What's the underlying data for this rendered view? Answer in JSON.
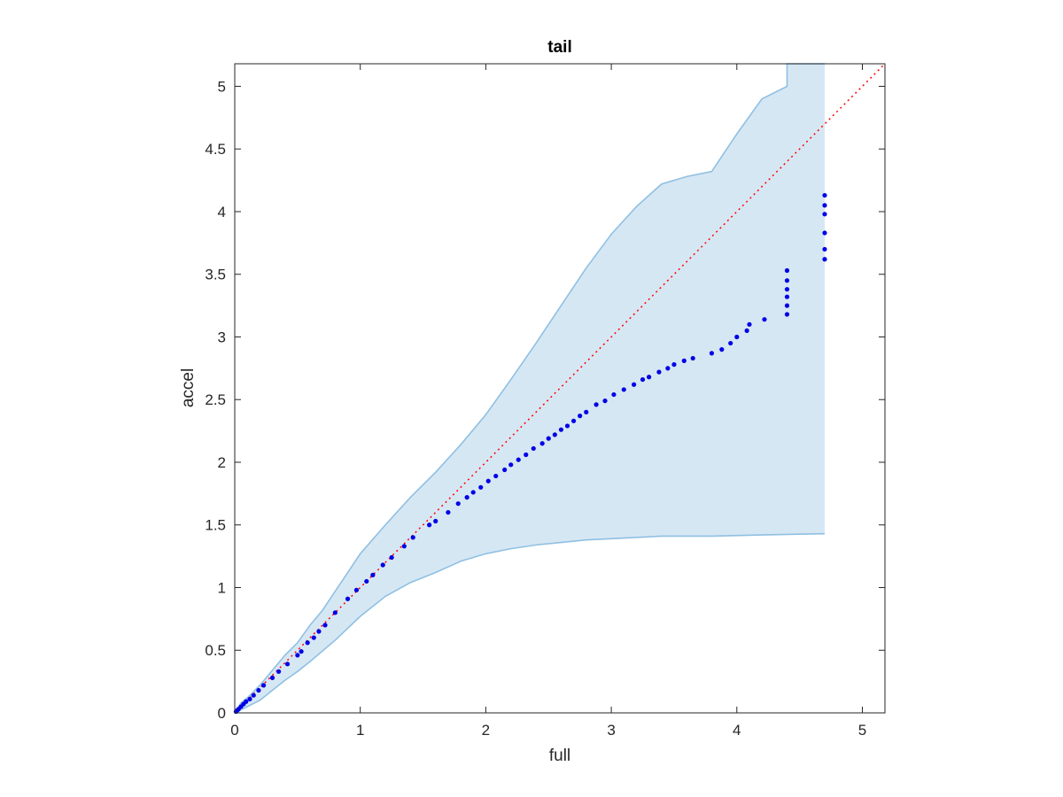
{
  "chart_data": {
    "type": "scatter",
    "title": "tail",
    "xlabel": "full",
    "ylabel": "accel",
    "xlim": [
      0,
      5.18
    ],
    "ylim": [
      0,
      5.18
    ],
    "xticks": [
      "0",
      "1",
      "2",
      "3",
      "4",
      "5"
    ],
    "yticks": [
      "0",
      "0.5",
      "1",
      "1.5",
      "2",
      "2.5",
      "3",
      "3.5",
      "4",
      "4.5",
      "5"
    ],
    "grid": false,
    "colors": {
      "points": "#0000e6",
      "band_fill": "#d6e7f4",
      "band_edge": "#8fc0e2",
      "reference_line": "#ff0000",
      "axes": "#262626"
    },
    "reference_line": {
      "style": "dotted",
      "x": [
        0,
        5.18
      ],
      "y": [
        0,
        5.18
      ]
    },
    "band": {
      "upper": [
        [
          0,
          0
        ],
        [
          0.05,
          0.08
        ],
        [
          0.1,
          0.12
        ],
        [
          0.2,
          0.22
        ],
        [
          0.3,
          0.34
        ],
        [
          0.4,
          0.46
        ],
        [
          0.5,
          0.56
        ],
        [
          0.6,
          0.7
        ],
        [
          0.7,
          0.82
        ],
        [
          0.8,
          0.97
        ],
        [
          0.9,
          1.12
        ],
        [
          1.0,
          1.27
        ],
        [
          1.2,
          1.5
        ],
        [
          1.4,
          1.72
        ],
        [
          1.6,
          1.92
        ],
        [
          1.8,
          2.14
        ],
        [
          2.0,
          2.38
        ],
        [
          2.2,
          2.66
        ],
        [
          2.4,
          2.95
        ],
        [
          2.6,
          3.25
        ],
        [
          2.8,
          3.55
        ],
        [
          3.0,
          3.82
        ],
        [
          3.2,
          4.04
        ],
        [
          3.4,
          4.22
        ],
        [
          3.6,
          4.28
        ],
        [
          3.8,
          4.32
        ],
        [
          4.0,
          4.62
        ],
        [
          4.2,
          4.9
        ],
        [
          4.4,
          5.0
        ],
        [
          4.4,
          5.18
        ],
        [
          4.7,
          5.18
        ]
      ],
      "lower": [
        [
          0,
          0
        ],
        [
          0.1,
          0.05
        ],
        [
          0.2,
          0.1
        ],
        [
          0.3,
          0.18
        ],
        [
          0.4,
          0.26
        ],
        [
          0.5,
          0.33
        ],
        [
          0.6,
          0.41
        ],
        [
          0.8,
          0.58
        ],
        [
          1.0,
          0.77
        ],
        [
          1.2,
          0.93
        ],
        [
          1.4,
          1.04
        ],
        [
          1.6,
          1.12
        ],
        [
          1.8,
          1.21
        ],
        [
          2.0,
          1.27
        ],
        [
          2.2,
          1.31
        ],
        [
          2.4,
          1.34
        ],
        [
          2.6,
          1.36
        ],
        [
          2.8,
          1.38
        ],
        [
          3.0,
          1.39
        ],
        [
          3.4,
          1.41
        ],
        [
          3.8,
          1.41
        ],
        [
          4.2,
          1.42
        ],
        [
          4.7,
          1.43
        ]
      ]
    },
    "series": [
      {
        "points": [
          [
            0.01,
            0.01
          ],
          [
            0.02,
            0.02
          ],
          [
            0.03,
            0.03
          ],
          [
            0.05,
            0.05
          ],
          [
            0.07,
            0.07
          ],
          [
            0.09,
            0.09
          ],
          [
            0.12,
            0.11
          ],
          [
            0.15,
            0.14
          ],
          [
            0.19,
            0.18
          ],
          [
            0.23,
            0.22
          ],
          [
            0.3,
            0.28
          ],
          [
            0.35,
            0.33
          ],
          [
            0.42,
            0.39
          ],
          [
            0.5,
            0.46
          ],
          [
            0.53,
            0.49
          ],
          [
            0.58,
            0.56
          ],
          [
            0.63,
            0.6
          ],
          [
            0.67,
            0.65
          ],
          [
            0.72,
            0.7
          ],
          [
            0.8,
            0.8
          ],
          [
            0.9,
            0.91
          ],
          [
            0.97,
            0.98
          ],
          [
            1.05,
            1.05
          ],
          [
            1.1,
            1.1
          ],
          [
            1.18,
            1.18
          ],
          [
            1.25,
            1.24
          ],
          [
            1.35,
            1.33
          ],
          [
            1.42,
            1.4
          ],
          [
            1.55,
            1.5
          ],
          [
            1.6,
            1.53
          ],
          [
            1.7,
            1.6
          ],
          [
            1.78,
            1.67
          ],
          [
            1.85,
            1.72
          ],
          [
            1.9,
            1.76
          ],
          [
            1.96,
            1.8
          ],
          [
            2.02,
            1.85
          ],
          [
            2.08,
            1.89
          ],
          [
            2.15,
            1.94
          ],
          [
            2.2,
            1.98
          ],
          [
            2.26,
            2.02
          ],
          [
            2.32,
            2.06
          ],
          [
            2.38,
            2.11
          ],
          [
            2.45,
            2.15
          ],
          [
            2.5,
            2.19
          ],
          [
            2.55,
            2.22
          ],
          [
            2.6,
            2.26
          ],
          [
            2.65,
            2.29
          ],
          [
            2.7,
            2.33
          ],
          [
            2.75,
            2.37
          ],
          [
            2.8,
            2.4
          ],
          [
            2.88,
            2.46
          ],
          [
            2.95,
            2.49
          ],
          [
            3.02,
            2.54
          ],
          [
            3.1,
            2.58
          ],
          [
            3.18,
            2.62
          ],
          [
            3.25,
            2.66
          ],
          [
            3.3,
            2.68
          ],
          [
            3.38,
            2.72
          ],
          [
            3.45,
            2.75
          ],
          [
            3.5,
            2.78
          ],
          [
            3.58,
            2.81
          ],
          [
            3.65,
            2.83
          ],
          [
            3.8,
            2.87
          ],
          [
            3.88,
            2.9
          ],
          [
            3.95,
            2.95
          ],
          [
            4.0,
            3.0
          ],
          [
            4.08,
            3.05
          ],
          [
            4.1,
            3.1
          ],
          [
            4.22,
            3.14
          ],
          [
            4.4,
            3.18
          ],
          [
            4.4,
            3.25
          ],
          [
            4.4,
            3.32
          ],
          [
            4.4,
            3.38
          ],
          [
            4.4,
            3.45
          ],
          [
            4.4,
            3.53
          ],
          [
            4.7,
            3.62
          ],
          [
            4.7,
            3.7
          ],
          [
            4.7,
            3.83
          ],
          [
            4.7,
            3.98
          ],
          [
            4.7,
            4.05
          ],
          [
            4.7,
            4.13
          ]
        ]
      }
    ]
  }
}
